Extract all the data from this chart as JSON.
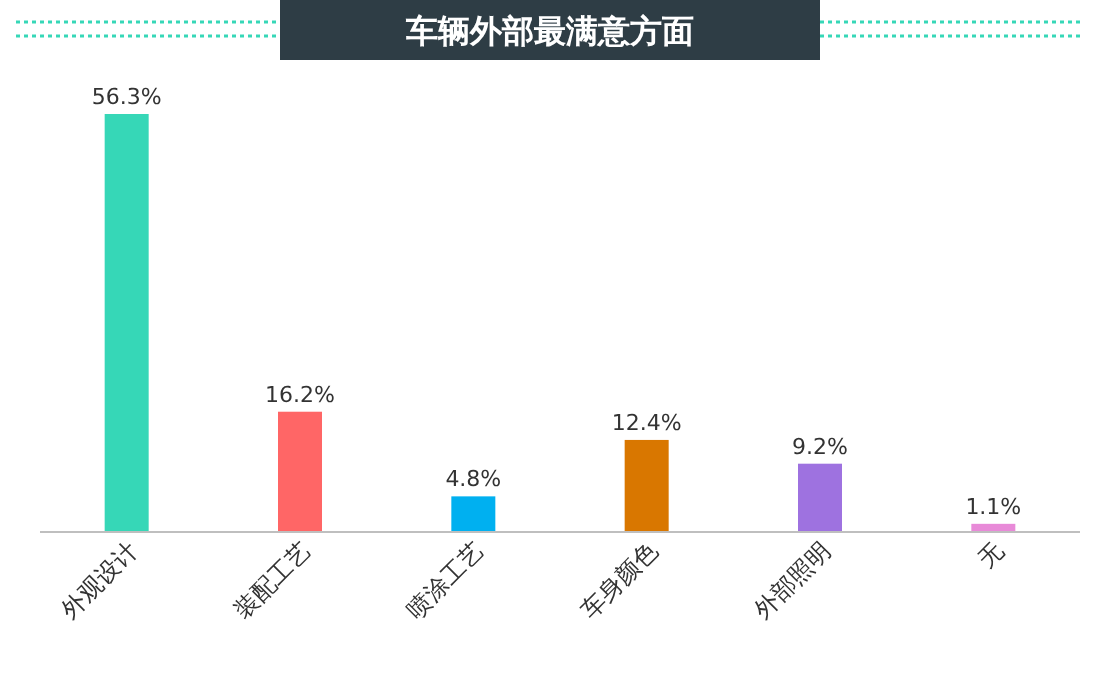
{
  "chart_data": {
    "type": "bar",
    "title": "车辆外部最满意方面",
    "categories": [
      "外观设计",
      "装配工艺",
      "喷涂工艺",
      "车身颜色",
      "外部照明",
      "无"
    ],
    "values": [
      56.3,
      16.2,
      4.8,
      12.4,
      9.2,
      1.1
    ],
    "value_labels": [
      "56.3%",
      "16.2%",
      "4.8%",
      "12.4%",
      "9.2%",
      "1.1%"
    ],
    "colors": [
      "#36d7b7",
      "#ff6666",
      "#00b0f0",
      "#d97700",
      "#9e72e0",
      "#e88ad8"
    ]
  }
}
